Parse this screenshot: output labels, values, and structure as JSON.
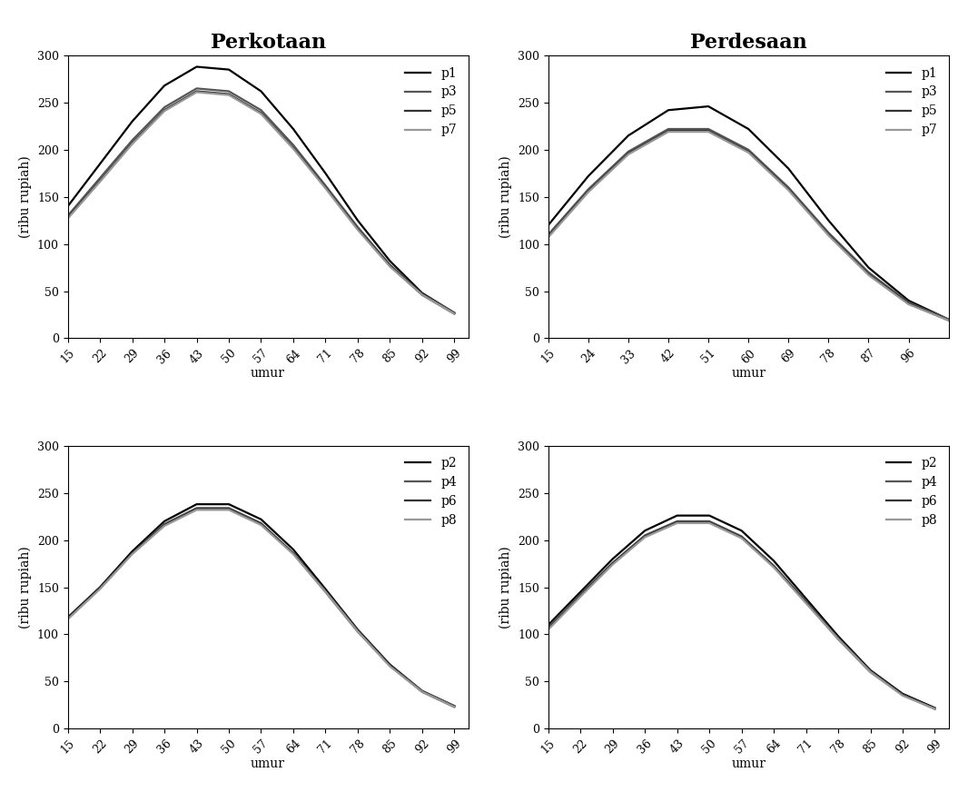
{
  "chart_data": [
    {
      "type": "line",
      "title": "Perkotaan",
      "x_label": "umur",
      "y_label": "(ribu rupiah)",
      "x": [
        15,
        22,
        29,
        36,
        43,
        50,
        57,
        64,
        71,
        78,
        85,
        92,
        99
      ],
      "xlim": [
        15,
        102
      ],
      "xticks": [
        15,
        22,
        29,
        36,
        43,
        50,
        57,
        64,
        71,
        78,
        85,
        92,
        99
      ],
      "ylim": [
        0,
        300
      ],
      "yticks": [
        0,
        50,
        100,
        150,
        200,
        250,
        300
      ],
      "legend": "upper right",
      "series": [
        {
          "name": "p1",
          "color": "#000000",
          "values": [
            140,
            185,
            230,
            268,
            288,
            285,
            262,
            222,
            175,
            125,
            82,
            48,
            27
          ]
        },
        {
          "name": "p3",
          "color": "#555555",
          "values": [
            130,
            170,
            210,
            245,
            265,
            262,
            242,
            205,
            162,
            118,
            78,
            47,
            27
          ]
        },
        {
          "name": "p5",
          "color": "#333333",
          "values": [
            128,
            167,
            207,
            242,
            262,
            259,
            239,
            202,
            160,
            116,
            77,
            46,
            26
          ]
        },
        {
          "name": "p7",
          "color": "#999999",
          "values": [
            127,
            166,
            206,
            241,
            261,
            258,
            238,
            201,
            159,
            115,
            76,
            46,
            26
          ]
        }
      ]
    },
    {
      "type": "line",
      "title": "Perdesaan",
      "x_label": "umur",
      "y_label": "(ribu rupiah)",
      "x": [
        15,
        24,
        33,
        42,
        51,
        60,
        69,
        78,
        87,
        96,
        105
      ],
      "xlim": [
        15,
        105
      ],
      "xticks": [
        15,
        24,
        33,
        42,
        51,
        60,
        69,
        78,
        87,
        96
      ],
      "ylim": [
        0,
        300
      ],
      "yticks": [
        0,
        50,
        100,
        150,
        200,
        250,
        300
      ],
      "legend": "upper right",
      "series": [
        {
          "name": "p1",
          "color": "#000000",
          "values": [
            120,
            172,
            215,
            242,
            246,
            222,
            180,
            125,
            75,
            40,
            20
          ]
        },
        {
          "name": "p3",
          "color": "#555555",
          "values": [
            110,
            158,
            198,
            222,
            222,
            200,
            160,
            112,
            70,
            38,
            20
          ]
        },
        {
          "name": "p5",
          "color": "#333333",
          "values": [
            108,
            156,
            196,
            220,
            220,
            198,
            158,
            110,
            68,
            37,
            19
          ]
        },
        {
          "name": "p7",
          "color": "#999999",
          "values": [
            107,
            155,
            195,
            219,
            219,
            197,
            157,
            109,
            67,
            36,
            19
          ]
        }
      ]
    },
    {
      "type": "line",
      "x_label": "umur",
      "y_label": "(ribu rupiah)",
      "x": [
        15,
        22,
        29,
        36,
        43,
        50,
        57,
        64,
        71,
        78,
        85,
        92,
        99
      ],
      "xlim": [
        15,
        102
      ],
      "xticks": [
        15,
        22,
        29,
        36,
        43,
        50,
        57,
        64,
        71,
        78,
        85,
        92,
        99
      ],
      "ylim": [
        0,
        300
      ],
      "yticks": [
        0,
        50,
        100,
        150,
        200,
        250,
        300
      ],
      "legend": "upper right",
      "series": [
        {
          "name": "p2",
          "color": "#000000",
          "values": [
            118,
            150,
            188,
            220,
            238,
            238,
            222,
            190,
            148,
            105,
            68,
            40,
            24
          ]
        },
        {
          "name": "p4",
          "color": "#555555",
          "values": [
            117,
            149,
            186,
            217,
            234,
            234,
            218,
            186,
            146,
            104,
            67,
            40,
            24
          ]
        },
        {
          "name": "p6",
          "color": "#333333",
          "values": [
            117,
            149,
            186,
            216,
            233,
            233,
            217,
            186,
            145,
            103,
            67,
            39,
            23
          ]
        },
        {
          "name": "p8",
          "color": "#999999",
          "values": [
            116,
            148,
            185,
            215,
            232,
            232,
            216,
            185,
            145,
            103,
            66,
            39,
            23
          ]
        }
      ]
    },
    {
      "type": "line",
      "x_label": "umur",
      "y_label": "(ribu rupiah)",
      "x": [
        15,
        22,
        29,
        36,
        43,
        50,
        57,
        64,
        71,
        78,
        85,
        92,
        99
      ],
      "xlim": [
        15,
        102
      ],
      "xticks": [
        15,
        22,
        29,
        36,
        43,
        50,
        57,
        64,
        71,
        78,
        85,
        92,
        99
      ],
      "ylim": [
        0,
        300
      ],
      "yticks": [
        0,
        50,
        100,
        150,
        200,
        250,
        300
      ],
      "legend": "upper right",
      "series": [
        {
          "name": "p2",
          "color": "#000000",
          "values": [
            110,
            145,
            180,
            210,
            226,
            226,
            210,
            178,
            138,
            98,
            62,
            37,
            22
          ]
        },
        {
          "name": "p4",
          "color": "#555555",
          "values": [
            107,
            142,
            176,
            205,
            220,
            220,
            204,
            173,
            135,
            96,
            61,
            36,
            21
          ]
        },
        {
          "name": "p6",
          "color": "#333333",
          "values": [
            106,
            141,
            175,
            204,
            219,
            219,
            203,
            172,
            134,
            95,
            60,
            36,
            21
          ]
        },
        {
          "name": "p8",
          "color": "#999999",
          "values": [
            105,
            140,
            174,
            203,
            218,
            218,
            202,
            171,
            133,
            95,
            60,
            35,
            21
          ]
        }
      ]
    }
  ]
}
